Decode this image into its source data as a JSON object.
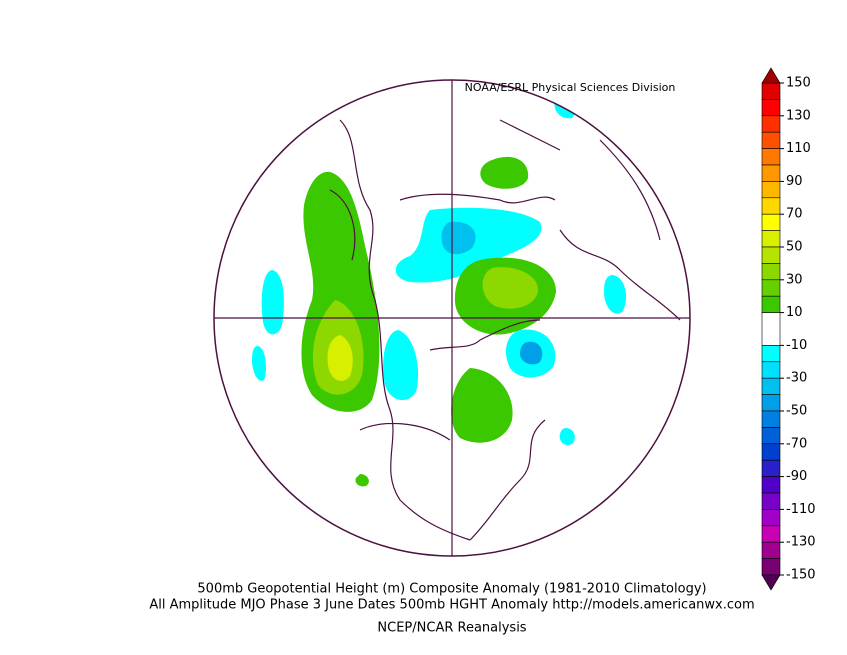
{
  "header": {
    "credit": "NOAA/ESRL Physical Sciences Division"
  },
  "colorbar": {
    "labels": [
      150,
      130,
      110,
      90,
      70,
      50,
      30,
      10,
      -10,
      -30,
      -50,
      -70,
      -90,
      -110,
      -130,
      -150
    ],
    "top_color": "#a00000",
    "colors": [
      "#e00000",
      "#ff0000",
      "#ff3000",
      "#ff5000",
      "#ff7800",
      "#ff9800",
      "#ffb800",
      "#ffd800",
      "#ffff00",
      "#d8f000",
      "#b4e400",
      "#8cd800",
      "#64d000",
      "#3cc800",
      "#ffffff",
      "#00ffff",
      "#00e0ff",
      "#00c0f0",
      "#00a0e8",
      "#0080e0",
      "#0060d8",
      "#0040d0",
      "#2820c8",
      "#5000c8",
      "#7800c8",
      "#a000c8",
      "#c800b4",
      "#a00090",
      "#780070"
    ],
    "bottom_color": "#500050"
  },
  "caption": {
    "line1": "500mb Geopotential Height (m) Composite Anomaly (1981-2010 Climatology)",
    "line2": "All Amplitude MJO Phase 3 June Dates 500mb HGHT Anomaly http://models.americanwx.com",
    "source": "NCEP/NCAR Reanalysis"
  }
}
